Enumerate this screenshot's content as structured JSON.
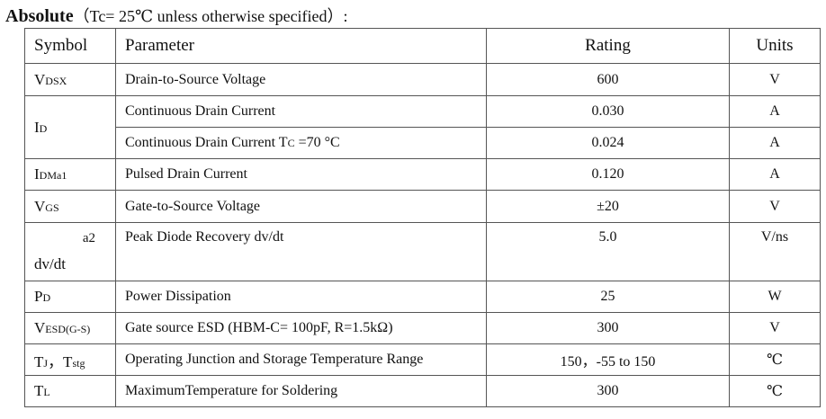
{
  "title": {
    "bold": "Absolute",
    "condition": "（Tc= 25℃ unless otherwise specified）:"
  },
  "headers": {
    "symbol": "Symbol",
    "parameter": "Parameter",
    "rating": "Rating",
    "units": "Units"
  },
  "rows": {
    "vdsx": {
      "sym_main": "V",
      "sym_sub": "DSX",
      "parameter": "Drain-to-Source Voltage",
      "rating": "600",
      "unit": "V"
    },
    "id": {
      "sym_main": "I",
      "sym_sub": "D",
      "r1": {
        "parameter": "Continuous Drain Current",
        "rating": "0.030",
        "unit": "A"
      },
      "r2": {
        "parameter_pre": "Continuous Drain Current T",
        "parameter_sub": "C",
        "parameter_post": " =70 °C",
        "rating": "0.024",
        "unit": "A"
      }
    },
    "idm": {
      "sym_main": "I",
      "sym_sub": "DMa1",
      "parameter": "Pulsed Drain Current",
      "rating": "0.120",
      "unit": "A"
    },
    "vgs": {
      "sym_main": "V",
      "sym_sub": "GS",
      "parameter": "Gate-to-Source Voltage",
      "rating": "±20",
      "unit": "V"
    },
    "dvdt": {
      "sym_sup": "a2",
      "sym_main": "dv/dt",
      "parameter": "Peak Diode Recovery dv/dt",
      "rating": "5.0",
      "unit": "V/ns"
    },
    "pd": {
      "sym_main": "P",
      "sym_sub": "D",
      "parameter": "Power Dissipation",
      "rating": "25",
      "unit": "W"
    },
    "vesd": {
      "sym_main": "V",
      "sym_sub": "ESD(G-S)",
      "parameter": "Gate source ESD (HBM-C= 100pF, R=1.5kΩ)",
      "rating": "300",
      "unit": "V"
    },
    "tj": {
      "sym_main1": "T",
      "sym_sub1": "J",
      "sym_sep": "，T",
      "sym_sub2": "stg",
      "parameter": "Operating Junction and Storage Temperature Range",
      "rating": "150，-55 to 150",
      "unit": "℃"
    },
    "tl": {
      "sym_main": "T",
      "sym_sub": "L",
      "parameter": "MaximumTemperature for Soldering",
      "rating": "300",
      "unit": "℃"
    }
  }
}
